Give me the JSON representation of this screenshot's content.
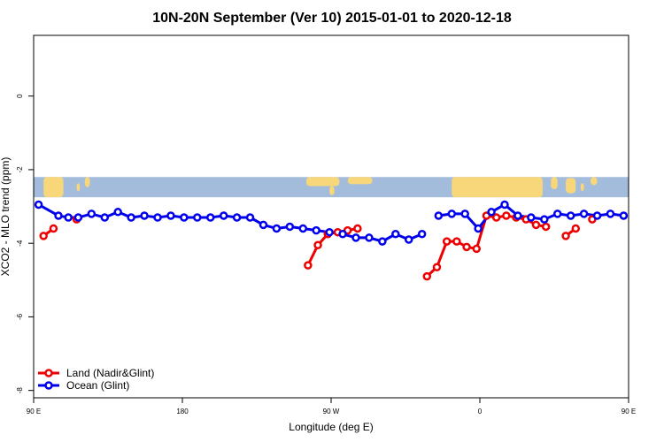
{
  "chart_data": {
    "type": "line",
    "title": "10N-20N September (Ver 10)   2015-01-01 to 2020-12-18",
    "xlabel": "Longitude (deg E)",
    "ylabel": "XCO2 - MLO trend (ppm)",
    "xlim": [
      90,
      450
    ],
    "ylim": [
      -8.2,
      1.65
    ],
    "x_ticks": [
      {
        "value": 90,
        "label": "90 E"
      },
      {
        "value": 180,
        "label": "180"
      },
      {
        "value": 270,
        "label": "90 W"
      },
      {
        "value": 360,
        "label": "0"
      },
      {
        "value": 450,
        "label": "90 E"
      },
      {
        "value": 540,
        "label": "180"
      }
    ],
    "y_ticks": [
      {
        "value": 0,
        "label": "0"
      },
      {
        "value": -2,
        "label": "-2"
      },
      {
        "value": -4,
        "label": "-4"
      },
      {
        "value": -6,
        "label": "-6"
      },
      {
        "value": -8,
        "label": "-8"
      }
    ],
    "map_band": {
      "y_top": -2.2,
      "y_bottom": -2.75,
      "ocean_color": "#a4bcdc",
      "land_color": "#f7d77a"
    },
    "legend": {
      "position": "bottom-left"
    },
    "series": [
      {
        "name": "Land (Nadir&Glint)",
        "color": "#ee0000",
        "segments": [
          {
            "x": [
              96,
              102
            ],
            "y": [
              -3.8,
              -3.6
            ]
          },
          {
            "x": [
              116
            ],
            "y": [
              -3.35
            ]
          },
          {
            "x": [
              256,
              262,
              268,
              274,
              280,
              286
            ],
            "y": [
              -4.6,
              -4.05,
              -3.75,
              -3.7,
              -3.65,
              -3.6
            ]
          },
          {
            "x": [
              328,
              334,
              340,
              346,
              352,
              358,
              364,
              370,
              376,
              382,
              388,
              394,
              400
            ],
            "y": [
              -4.9,
              -4.65,
              -3.95,
              -3.95,
              -4.1,
              -4.15,
              -3.25,
              -3.3,
              -3.25,
              -3.3,
              -3.35,
              -3.5,
              -3.55
            ]
          },
          {
            "x": [
              412,
              418
            ],
            "y": [
              -3.8,
              -3.6
            ]
          },
          {
            "x": [
              428
            ],
            "y": [
              -3.35
            ]
          }
        ]
      },
      {
        "name": "Ocean (Glint)",
        "color": "#0000ee",
        "segments": [
          {
            "x": [
              93,
              105,
              111,
              117,
              125,
              133,
              141,
              149,
              157,
              165,
              173,
              181,
              189,
              197,
              205,
              213,
              221,
              229,
              237,
              245,
              253,
              261,
              269,
              277,
              285,
              293,
              301,
              309,
              317,
              325
            ],
            "y": [
              -2.95,
              -3.25,
              -3.3,
              -3.3,
              -3.2,
              -3.3,
              -3.15,
              -3.3,
              -3.25,
              -3.3,
              -3.25,
              -3.3,
              -3.3,
              -3.3,
              -3.25,
              -3.3,
              -3.3,
              -3.5,
              -3.6,
              -3.55,
              -3.6,
              -3.65,
              -3.7,
              -3.75,
              -3.85,
              -3.85,
              -3.95,
              -3.75,
              -3.9,
              -3.75
            ]
          },
          {
            "x": [
              335,
              343,
              351,
              359,
              367,
              375,
              383,
              391,
              399,
              407,
              415,
              423,
              431,
              439,
              447
            ],
            "y": [
              -3.25,
              -3.2,
              -3.2,
              -3.6,
              -3.15,
              -2.95,
              -3.25,
              -3.3,
              -3.35,
              -3.2,
              -3.25,
              -3.2,
              -3.25,
              -3.2,
              -3.25
            ]
          }
        ]
      }
    ]
  }
}
